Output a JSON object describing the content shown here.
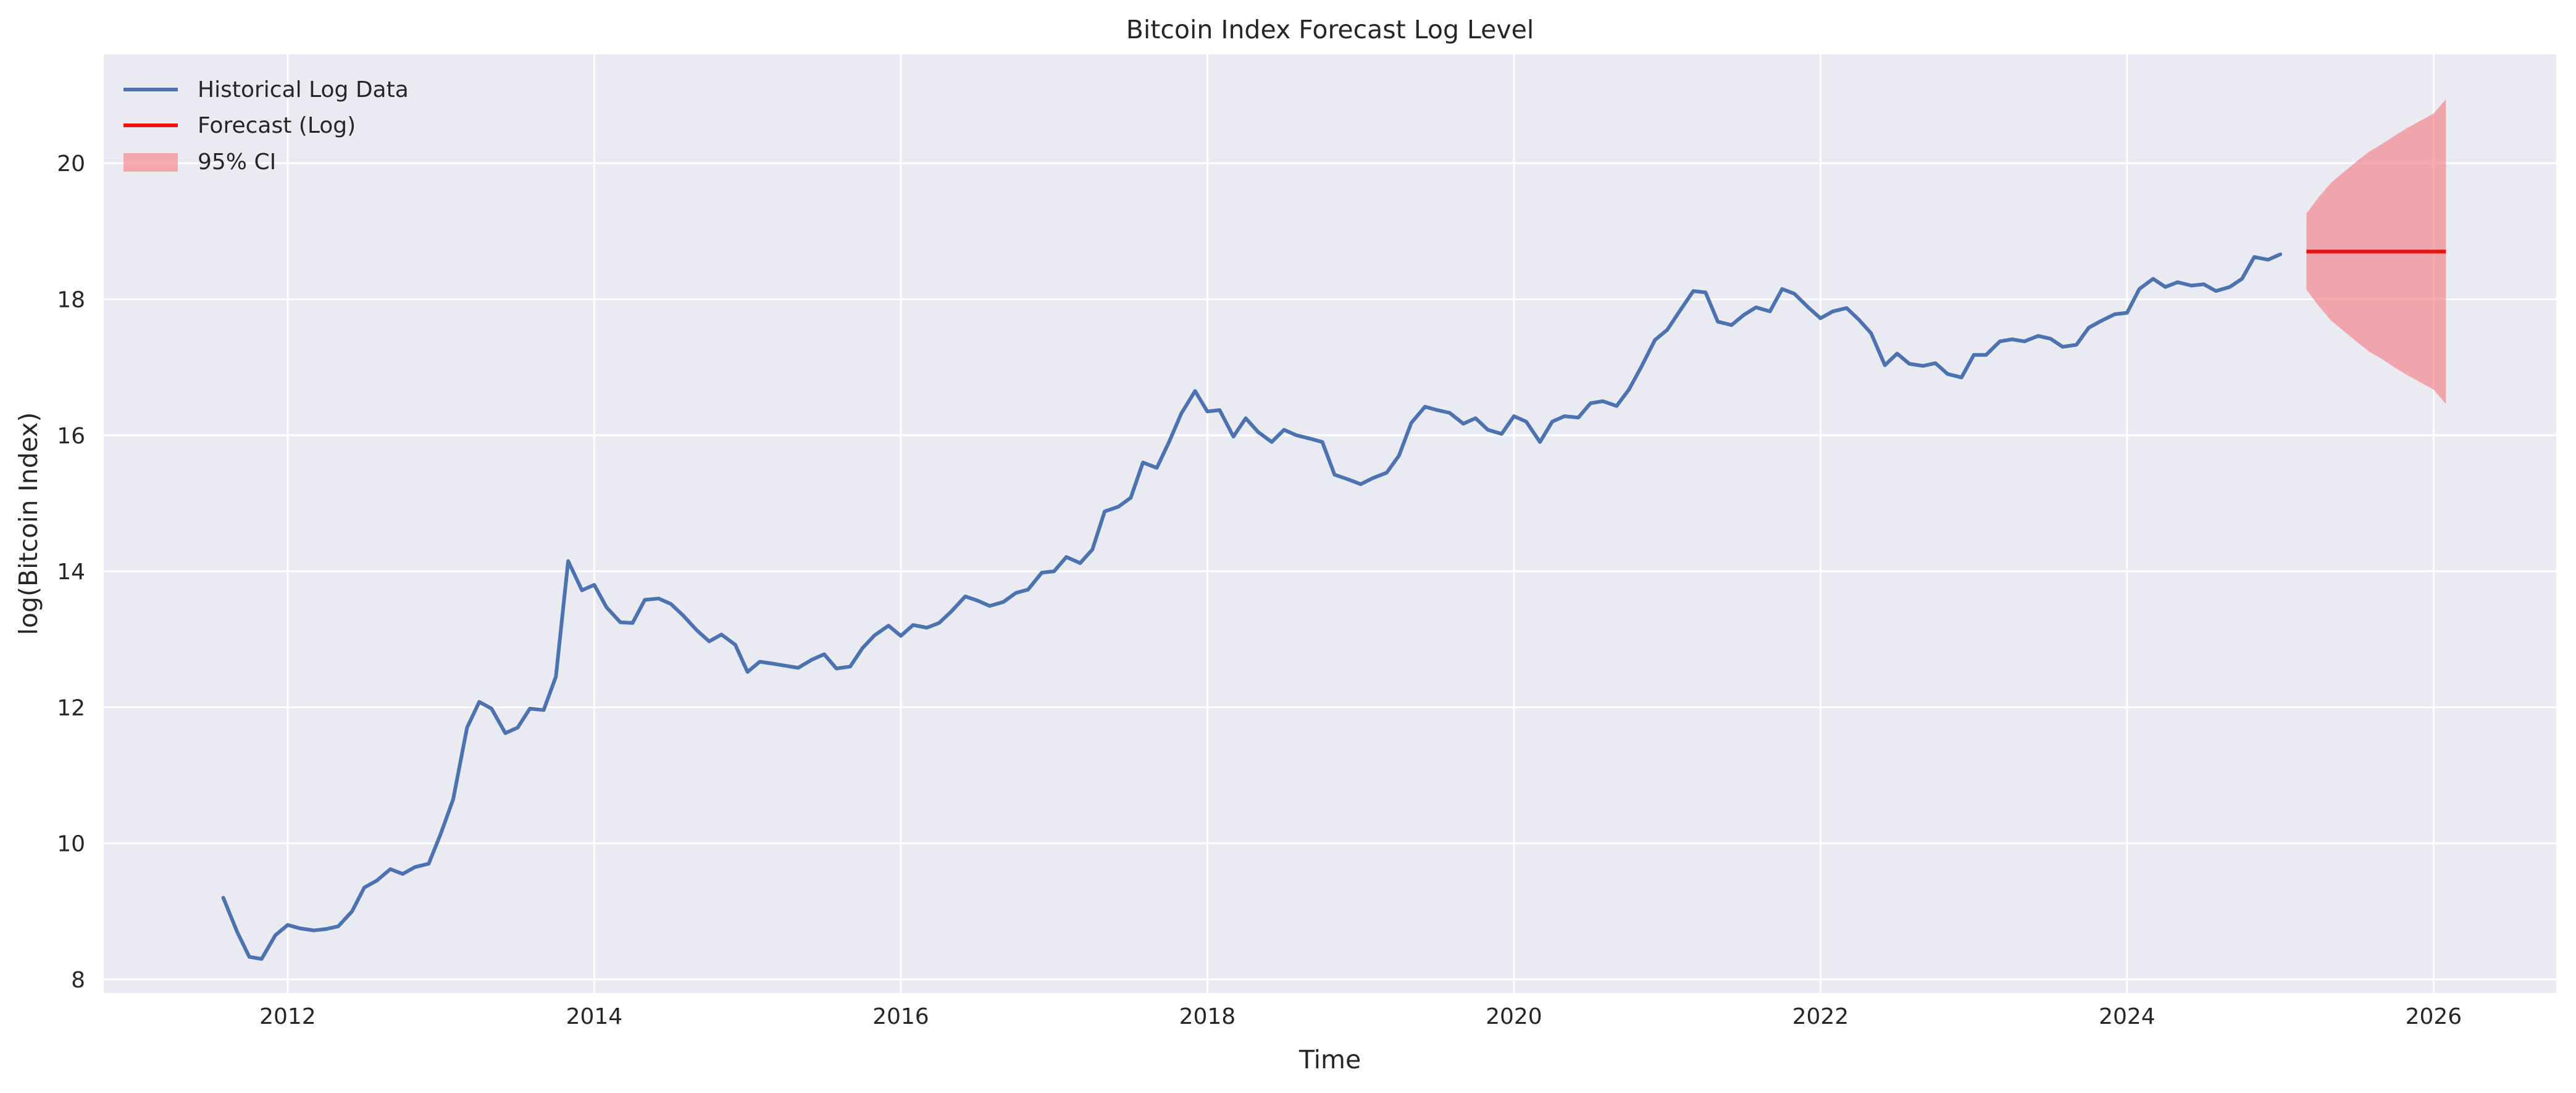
{
  "chart_data": {
    "type": "line",
    "title": "Bitcoin Index Forecast Log Level",
    "xlabel": "Time",
    "ylabel": "log(Bitcoin Index)",
    "xlim": [
      2010.8,
      2026.8
    ],
    "ylim": [
      7.8,
      21.6
    ],
    "xticks": [
      2012,
      2014,
      2016,
      2018,
      2020,
      2022,
      2024,
      2026
    ],
    "yticks": [
      8,
      10,
      12,
      14,
      16,
      18,
      20
    ],
    "grid": true,
    "legend_position": "top-left",
    "colors": {
      "historical": "#4c72b0",
      "forecast": "#ee1111",
      "ci": "#f28b90",
      "background": "#eaeaf2",
      "grid": "#ffffff"
    },
    "series": [
      {
        "name": "Historical Log Data",
        "kind": "line",
        "x": [
          2011.58,
          2011.67,
          2011.75,
          2011.83,
          2011.92,
          2012.0,
          2012.08,
          2012.17,
          2012.25,
          2012.33,
          2012.42,
          2012.5,
          2012.58,
          2012.67,
          2012.75,
          2012.83,
          2012.92,
          2013.0,
          2013.08,
          2013.17,
          2013.25,
          2013.33,
          2013.42,
          2013.5,
          2013.58,
          2013.67,
          2013.75,
          2013.83,
          2013.92,
          2014.0,
          2014.08,
          2014.17,
          2014.25,
          2014.33,
          2014.42,
          2014.5,
          2014.58,
          2014.67,
          2014.75,
          2014.83,
          2014.92,
          2015.0,
          2015.08,
          2015.17,
          2015.25,
          2015.33,
          2015.42,
          2015.5,
          2015.58,
          2015.67,
          2015.75,
          2015.83,
          2015.92,
          2016.0,
          2016.08,
          2016.17,
          2016.25,
          2016.33,
          2016.42,
          2016.5,
          2016.58,
          2016.67,
          2016.75,
          2016.83,
          2016.92,
          2017.0,
          2017.08,
          2017.17,
          2017.25,
          2017.33,
          2017.42,
          2017.5,
          2017.58,
          2017.67,
          2017.75,
          2017.83,
          2017.92,
          2018.0,
          2018.08,
          2018.17,
          2018.25,
          2018.33,
          2018.42,
          2018.5,
          2018.58,
          2018.67,
          2018.75,
          2018.83,
          2018.92,
          2019.0,
          2019.08,
          2019.17,
          2019.25,
          2019.33,
          2019.42,
          2019.5,
          2019.58,
          2019.67,
          2019.75,
          2019.83,
          2019.92,
          2020.0,
          2020.08,
          2020.17,
          2020.25,
          2020.33,
          2020.42,
          2020.5,
          2020.58,
          2020.67,
          2020.75,
          2020.83,
          2020.92,
          2021.0,
          2021.08,
          2021.17,
          2021.25,
          2021.33,
          2021.42,
          2021.5,
          2021.58,
          2021.67,
          2021.75,
          2021.83,
          2021.92,
          2022.0,
          2022.08,
          2022.17,
          2022.25,
          2022.33,
          2022.42,
          2022.5,
          2022.58,
          2022.67,
          2022.75,
          2022.83,
          2022.92,
          2023.0,
          2023.08,
          2023.17,
          2023.25,
          2023.33,
          2023.42,
          2023.5,
          2023.58,
          2023.67,
          2023.75,
          2023.83,
          2023.92,
          2024.0,
          2024.08,
          2024.17,
          2024.25,
          2024.33,
          2024.42,
          2024.5,
          2024.58,
          2024.67,
          2024.75,
          2024.83,
          2024.92,
          2025.0
        ],
        "y": [
          9.2,
          8.7,
          8.33,
          8.3,
          8.65,
          8.8,
          8.75,
          8.72,
          8.74,
          8.78,
          9.0,
          9.35,
          9.45,
          9.62,
          9.55,
          9.65,
          9.7,
          10.15,
          10.65,
          11.7,
          12.08,
          11.98,
          11.62,
          11.7,
          11.98,
          11.96,
          12.45,
          14.15,
          13.72,
          13.8,
          13.47,
          13.25,
          13.24,
          13.58,
          13.6,
          13.52,
          13.35,
          13.13,
          12.97,
          13.07,
          12.92,
          12.52,
          12.67,
          12.64,
          12.61,
          12.58,
          12.7,
          12.78,
          12.57,
          12.6,
          12.87,
          13.06,
          13.2,
          13.05,
          13.21,
          13.17,
          13.24,
          13.41,
          13.63,
          13.57,
          13.49,
          13.55,
          13.68,
          13.73,
          13.98,
          14.0,
          14.21,
          14.12,
          14.32,
          14.88,
          14.95,
          15.08,
          15.6,
          15.52,
          15.9,
          16.32,
          16.65,
          16.35,
          16.37,
          15.98,
          16.25,
          16.05,
          15.9,
          16.08,
          16.0,
          15.95,
          15.9,
          15.42,
          15.35,
          15.28,
          15.37,
          15.45,
          15.7,
          16.18,
          16.42,
          16.37,
          16.33,
          16.17,
          16.25,
          16.08,
          16.02,
          16.28,
          16.2,
          15.9,
          16.2,
          16.28,
          16.26,
          16.47,
          16.5,
          16.43,
          16.67,
          17.0,
          17.4,
          17.55,
          17.82,
          18.12,
          18.1,
          17.67,
          17.62,
          17.77,
          17.88,
          17.82,
          18.15,
          18.08,
          17.88,
          17.72,
          17.82,
          17.87,
          17.7,
          17.5,
          17.03,
          17.2,
          17.05,
          17.02,
          17.06,
          16.9,
          16.85,
          17.18,
          17.18,
          17.38,
          17.41,
          17.38,
          17.46,
          17.42,
          17.3,
          17.33,
          17.58,
          17.68,
          17.78,
          17.8,
          18.15,
          18.3,
          18.18,
          18.25,
          18.2,
          18.22,
          18.12,
          18.18,
          18.3,
          18.62,
          18.58,
          18.66
        ]
      },
      {
        "name": "Forecast (Log)",
        "kind": "line",
        "x": [
          2025.17,
          2026.08
        ],
        "y": [
          18.7,
          18.7
        ]
      },
      {
        "name": "95% CI",
        "kind": "band",
        "x": [
          2025.17,
          2025.25,
          2025.33,
          2025.42,
          2025.5,
          2025.58,
          2025.67,
          2025.75,
          2025.83,
          2025.92,
          2026.0,
          2026.08
        ],
        "lower": [
          18.14,
          17.9,
          17.69,
          17.52,
          17.37,
          17.23,
          17.11,
          16.99,
          16.88,
          16.77,
          16.67,
          16.46
        ],
        "upper": [
          19.26,
          19.5,
          19.71,
          19.88,
          20.03,
          20.17,
          20.29,
          20.41,
          20.52,
          20.63,
          20.73,
          20.94
        ]
      }
    ]
  }
}
